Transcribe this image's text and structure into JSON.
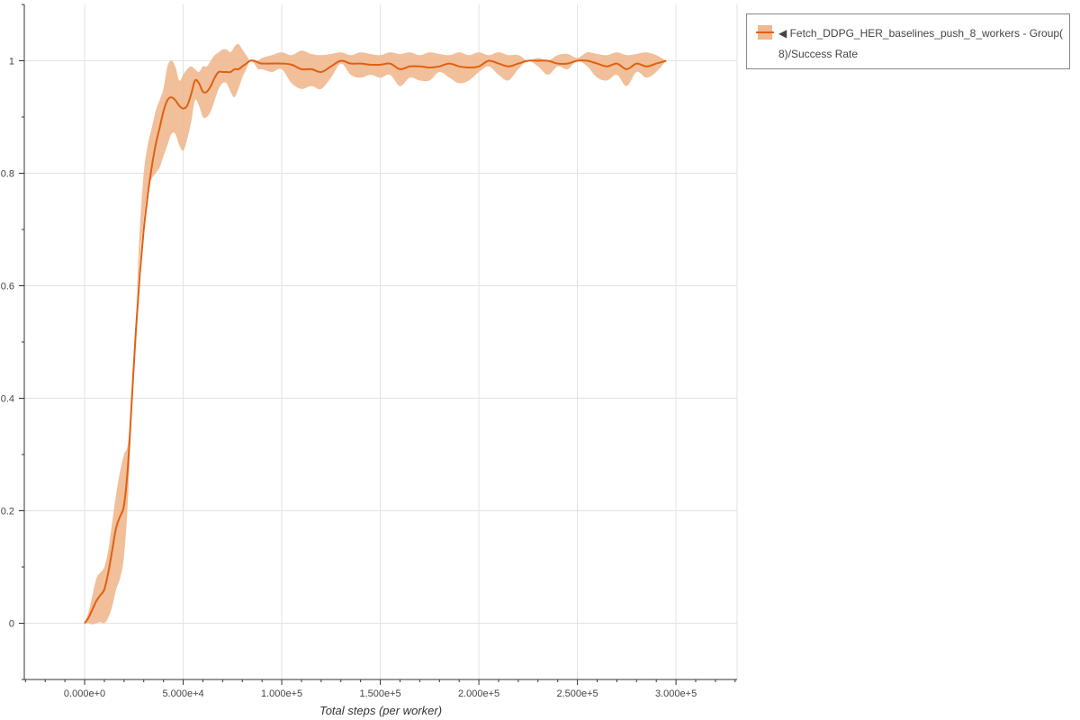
{
  "chart_data": {
    "type": "line",
    "title": "",
    "xlabel": "Total steps (per worker)",
    "ylabel": "",
    "xlim": [
      -30600,
      331000
    ],
    "ylim": [
      -0.1,
      1.1
    ],
    "x_ticks": [
      0,
      50000,
      100000,
      150000,
      200000,
      250000,
      300000
    ],
    "x_tick_labels": [
      "0.000e+0",
      "5.000e+4",
      "1.000e+5",
      "1.500e+5",
      "2.000e+5",
      "2.500e+5",
      "3.000e+5"
    ],
    "y_ticks": [
      0,
      0.2,
      0.4,
      0.6,
      0.8,
      1
    ],
    "y_tick_labels": [
      "0",
      "0.2",
      "0.4",
      "0.6",
      "0.8",
      "1"
    ],
    "grid": true,
    "legend_position": "outside-right-top",
    "colors": {
      "line": "#e06010",
      "band": "#f0b88f"
    },
    "series": [
      {
        "name": "◀ Fetch_DDPG_HER_baselines_push_8_workers - Group( 8)/Success Rate",
        "x": [
          0,
          2000,
          4000,
          6000,
          8000,
          10000,
          12000,
          14000,
          16000,
          18000,
          20000,
          22000,
          24000,
          26000,
          28000,
          30000,
          32000,
          34000,
          36000,
          38000,
          40000,
          42000,
          44000,
          46000,
          48000,
          50000,
          52000,
          54000,
          56000,
          58000,
          60000,
          62000,
          64000,
          66000,
          68000,
          70000,
          72000,
          74000,
          76000,
          78000,
          80000,
          82000,
          84000,
          86000,
          88000,
          90000,
          95000,
          100000,
          105000,
          110000,
          115000,
          120000,
          125000,
          130000,
          135000,
          140000,
          145000,
          150000,
          155000,
          160000,
          165000,
          170000,
          175000,
          180000,
          185000,
          190000,
          195000,
          200000,
          205000,
          210000,
          215000,
          220000,
          225000,
          230000,
          235000,
          240000,
          245000,
          250000,
          255000,
          260000,
          265000,
          270000,
          275000,
          280000,
          285000,
          290000,
          295000
        ],
        "mean": [
          0,
          0.01,
          0.025,
          0.04,
          0.05,
          0.06,
          0.09,
          0.13,
          0.17,
          0.19,
          0.21,
          0.28,
          0.4,
          0.52,
          0.62,
          0.7,
          0.76,
          0.81,
          0.85,
          0.88,
          0.91,
          0.93,
          0.935,
          0.93,
          0.92,
          0.915,
          0.92,
          0.94,
          0.965,
          0.96,
          0.945,
          0.945,
          0.955,
          0.97,
          0.98,
          0.98,
          0.98,
          0.98,
          0.985,
          0.985,
          0.99,
          0.995,
          1.0,
          1.0,
          0.997,
          0.995,
          0.995,
          0.995,
          0.993,
          0.985,
          0.985,
          0.98,
          0.99,
          1.0,
          0.995,
          0.995,
          0.993,
          0.993,
          0.995,
          0.985,
          0.99,
          0.99,
          0.988,
          0.99,
          0.995,
          0.99,
          0.988,
          0.99,
          1.0,
          0.995,
          0.99,
          0.995,
          1.0,
          1.0,
          1.0,
          0.995,
          0.995,
          1.0,
          1.0,
          0.995,
          0.99,
          0.995,
          0.985,
          0.995,
          0.99,
          0.995,
          1.0
        ],
        "lower": [
          0,
          0,
          -0.002,
          0,
          0.002,
          0,
          0.01,
          0.03,
          0.06,
          0.08,
          0.12,
          0.22,
          0.4,
          0.55,
          0.65,
          0.72,
          0.77,
          0.79,
          0.8,
          0.81,
          0.83,
          0.85,
          0.87,
          0.87,
          0.85,
          0.84,
          0.86,
          0.89,
          0.93,
          0.92,
          0.9,
          0.9,
          0.91,
          0.93,
          0.95,
          0.96,
          0.96,
          0.945,
          0.935,
          0.95,
          0.97,
          0.985,
          1.0,
          0.995,
          0.985,
          0.985,
          0.98,
          0.985,
          0.96,
          0.95,
          0.955,
          0.95,
          0.97,
          0.995,
          0.975,
          0.97,
          0.975,
          0.97,
          0.975,
          0.955,
          0.97,
          0.965,
          0.965,
          0.98,
          0.97,
          0.96,
          0.965,
          0.98,
          0.99,
          0.975,
          0.965,
          0.985,
          1.0,
          0.99,
          0.975,
          0.99,
          0.985,
          1.0,
          0.99,
          0.97,
          0.965,
          0.975,
          0.955,
          0.98,
          0.97,
          0.98,
          1.0
        ],
        "upper": [
          0,
          0.02,
          0.05,
          0.08,
          0.09,
          0.1,
          0.13,
          0.18,
          0.23,
          0.27,
          0.3,
          0.32,
          0.4,
          0.55,
          0.7,
          0.8,
          0.85,
          0.88,
          0.91,
          0.93,
          0.95,
          0.99,
          1.0,
          0.99,
          0.965,
          0.975,
          0.985,
          0.99,
          0.985,
          0.98,
          0.99,
          0.99,
          1.0,
          1.01,
          1.015,
          1.02,
          1.02,
          1.015,
          1.025,
          1.03,
          1.02,
          1.01,
          1.0,
          1.0,
          1.0,
          1.005,
          1.01,
          1.015,
          1.01,
          1.018,
          1.012,
          1.01,
          1.012,
          1.015,
          1.01,
          1.015,
          1.012,
          1.01,
          1.015,
          1.012,
          1.015,
          1.01,
          1.015,
          1.012,
          1.01,
          1.015,
          1.01,
          1.015,
          1.01,
          1.015,
          1.01,
          1.01,
          1.0,
          1.005,
          1.0,
          1.01,
          1.012,
          1.005,
          1.015,
          1.012,
          1.01,
          1.015,
          1.01,
          1.012,
          1.015,
          1.01,
          1.0
        ]
      }
    ]
  }
}
